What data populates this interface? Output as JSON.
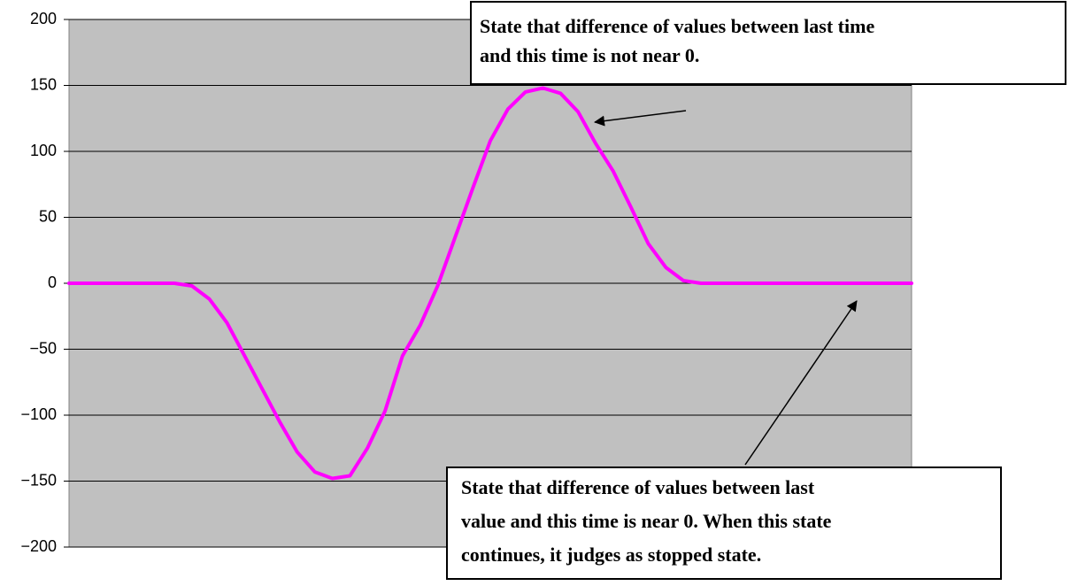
{
  "chart_data": {
    "type": "line",
    "series": [
      {
        "color": "#ff00ff",
        "values": [
          0,
          0,
          0,
          0,
          0,
          0,
          0,
          -2,
          -12,
          -30,
          -55,
          -80,
          -105,
          -128,
          -143,
          -148,
          -146,
          -125,
          -97,
          -55,
          -32,
          -2,
          35,
          72,
          108,
          132,
          145,
          148,
          144,
          130,
          106,
          85,
          58,
          30,
          12,
          2,
          0,
          0,
          0,
          0,
          0,
          0,
          0,
          0,
          0,
          0,
          0,
          0,
          0
        ]
      }
    ],
    "ylim": [
      -200,
      200
    ],
    "yticks": [
      200,
      150,
      100,
      50,
      0,
      {
        "value": -50,
        "label": "−50"
      },
      {
        "value": -100,
        "label": "−100"
      },
      {
        "value": -150,
        "label": "−150"
      },
      {
        "value": -200,
        "label": "−200"
      }
    ],
    "grid": true,
    "background": "#c0c0c0",
    "annotations": [
      {
        "lines": [
          "State that difference of values between last time",
          "and this time is not near 0."
        ]
      },
      {
        "lines": [
          "State that difference of values between last",
          "value and this time is near 0. When this state",
          "continues, it judges as stopped state."
        ]
      }
    ]
  }
}
